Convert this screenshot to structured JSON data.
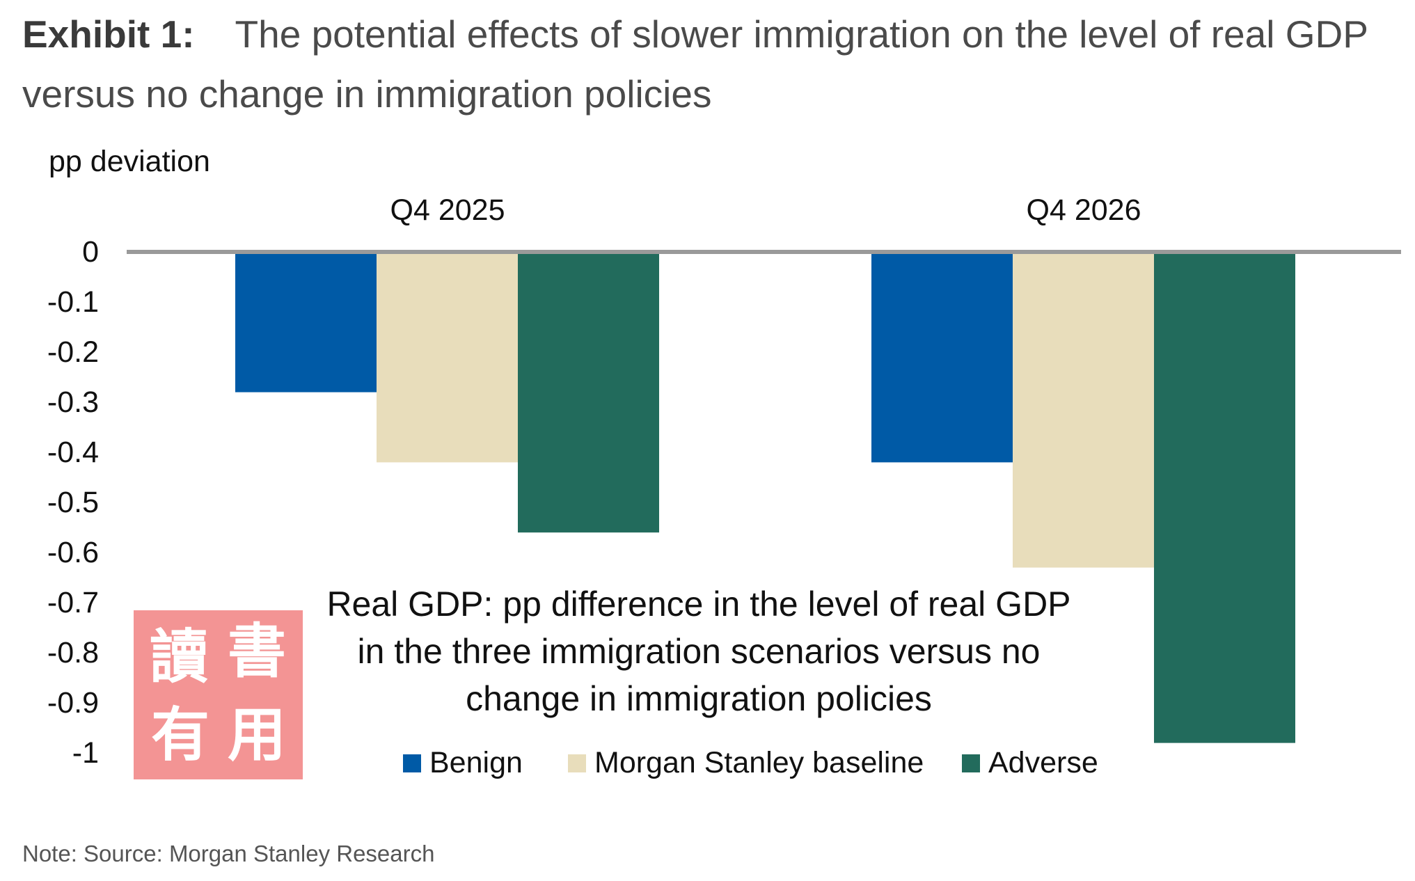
{
  "header": {
    "exhibit_label": "Exhibit 1:",
    "title": "The potential effects of slower immigration on the level of real GDP versus no change in immigration policies"
  },
  "footer": {
    "note": "Note: Source: Morgan Stanley Research"
  },
  "watermark": {
    "glyphs": [
      "讀",
      "書",
      "有",
      "用"
    ]
  },
  "chart_data": {
    "type": "bar",
    "title": "Real GDP: pp difference in the level of real GDP in the three immigration scenarios versus no change in immigration policies",
    "title_lines": [
      "Real GDP: pp difference in the level of real GDP",
      "in the three immigration scenarios versus no",
      "change in immigration policies"
    ],
    "ylabel": "pp deviation",
    "xlabel": "",
    "categories": [
      "Q4 2025",
      "Q4 2026"
    ],
    "ylim": [
      -1,
      0
    ],
    "yticks": [
      "0",
      "-0.1",
      "-0.2",
      "-0.3",
      "-0.4",
      "-0.5",
      "-0.6",
      "-0.7",
      "-0.8",
      "-0.9",
      "-1"
    ],
    "grid": false,
    "legend_position": "bottom-center",
    "series": [
      {
        "name": "Benign",
        "color": "#005aa6",
        "values": [
          -0.28,
          -0.42
        ]
      },
      {
        "name": "Morgan Stanley baseline",
        "color": "#e8ddbb",
        "values": [
          -0.42,
          -0.63
        ]
      },
      {
        "name": "Adverse",
        "color": "#226b5c",
        "values": [
          -0.56,
          -0.98
        ]
      }
    ]
  }
}
